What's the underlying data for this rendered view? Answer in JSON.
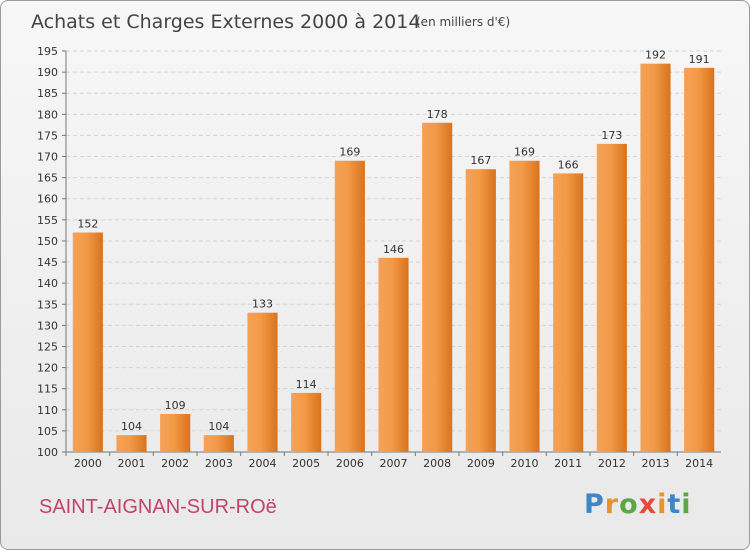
{
  "chart_data": {
    "type": "bar",
    "title": "Achats et Charges Externes 2000 à 2014",
    "subtitle": "(en milliers d'€)",
    "categories": [
      "2000",
      "2001",
      "2002",
      "2003",
      "2004",
      "2005",
      "2006",
      "2007",
      "2008",
      "2009",
      "2010",
      "2011",
      "2012",
      "2013",
      "2014"
    ],
    "values": [
      152,
      104,
      109,
      104,
      133,
      114,
      169,
      146,
      178,
      167,
      169,
      166,
      173,
      192,
      191
    ],
    "ylim": [
      100,
      195
    ],
    "ytick_step": 5,
    "grid": true,
    "xlabel": "",
    "ylabel": "",
    "bar_color": "#f0913a"
  },
  "footer": {
    "commune": "SAINT-AIGNAN-SUR-ROë",
    "brand_letters": [
      {
        "ch": "P",
        "color": "#3e86c7"
      },
      {
        "ch": "r",
        "color": "#e8942c"
      },
      {
        "ch": "o",
        "color": "#5aa845"
      },
      {
        "ch": "x",
        "color": "#e44b3a"
      },
      {
        "ch": "i",
        "color": "#e8942c"
      },
      {
        "ch": "t",
        "color": "#3e86c7"
      },
      {
        "ch": "i",
        "color": "#5aa845"
      }
    ]
  }
}
